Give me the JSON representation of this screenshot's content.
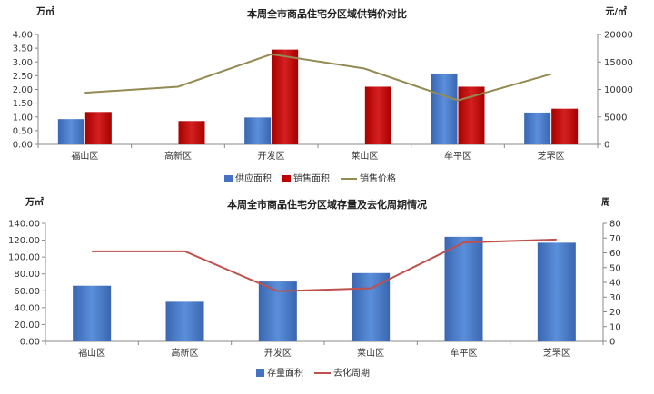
{
  "chart_data": [
    {
      "type": "bar",
      "title": "本周全市商品住宅分区域供销价对比",
      "left_unit": "万㎡",
      "right_unit": "元/㎡",
      "categories": [
        "福山区",
        "高新区",
        "开发区",
        "莱山区",
        "牟平区",
        "芝罘区"
      ],
      "ylim": [
        0,
        4.0
      ],
      "y2lim": [
        0,
        20000
      ],
      "yticks": [
        "0.00",
        "0.50",
        "1.00",
        "1.50",
        "2.00",
        "2.50",
        "3.00",
        "3.50",
        "4.00"
      ],
      "y2ticks": [
        "0",
        "5000",
        "10000",
        "15000",
        "20000"
      ],
      "series": [
        {
          "name": "供应面积",
          "type": "bar",
          "axis": "left",
          "color": "#4472C4",
          "values": [
            0.92,
            null,
            0.98,
            null,
            2.58,
            1.16
          ]
        },
        {
          "name": "销售面积",
          "type": "bar",
          "axis": "left",
          "color": "#C00000",
          "values": [
            1.18,
            0.85,
            3.45,
            2.1,
            2.1,
            1.3
          ]
        },
        {
          "name": "销售价格",
          "type": "line",
          "axis": "right",
          "color": "#948A54",
          "values": [
            9400,
            10500,
            16400,
            13800,
            8000,
            12800
          ]
        }
      ],
      "legend_position": "bottom"
    },
    {
      "type": "bar",
      "title": "本周全市商品住宅分区域存量及去化周期情况",
      "left_unit": "万㎡",
      "right_unit": "周",
      "categories": [
        "福山区",
        "高新区",
        "开发区",
        "莱山区",
        "牟平区",
        "芝罘区"
      ],
      "ylim": [
        0,
        140
      ],
      "y2lim": [
        0,
        80
      ],
      "yticks": [
        "0.00",
        "20.00",
        "40.00",
        "60.00",
        "80.00",
        "100.00",
        "120.00",
        "140.00"
      ],
      "y2ticks": [
        "0",
        "10",
        "20",
        "30",
        "40",
        "50",
        "60",
        "70",
        "80"
      ],
      "series": [
        {
          "name": "存量面积",
          "type": "bar",
          "axis": "left",
          "color": "#4472C4",
          "values": [
            66,
            47,
            71,
            81,
            124,
            117
          ]
        },
        {
          "name": "去化周期",
          "type": "line",
          "axis": "right",
          "color": "#C0504D",
          "values": [
            61,
            61,
            34,
            36,
            67,
            69
          ]
        }
      ],
      "legend_position": "bottom"
    }
  ]
}
